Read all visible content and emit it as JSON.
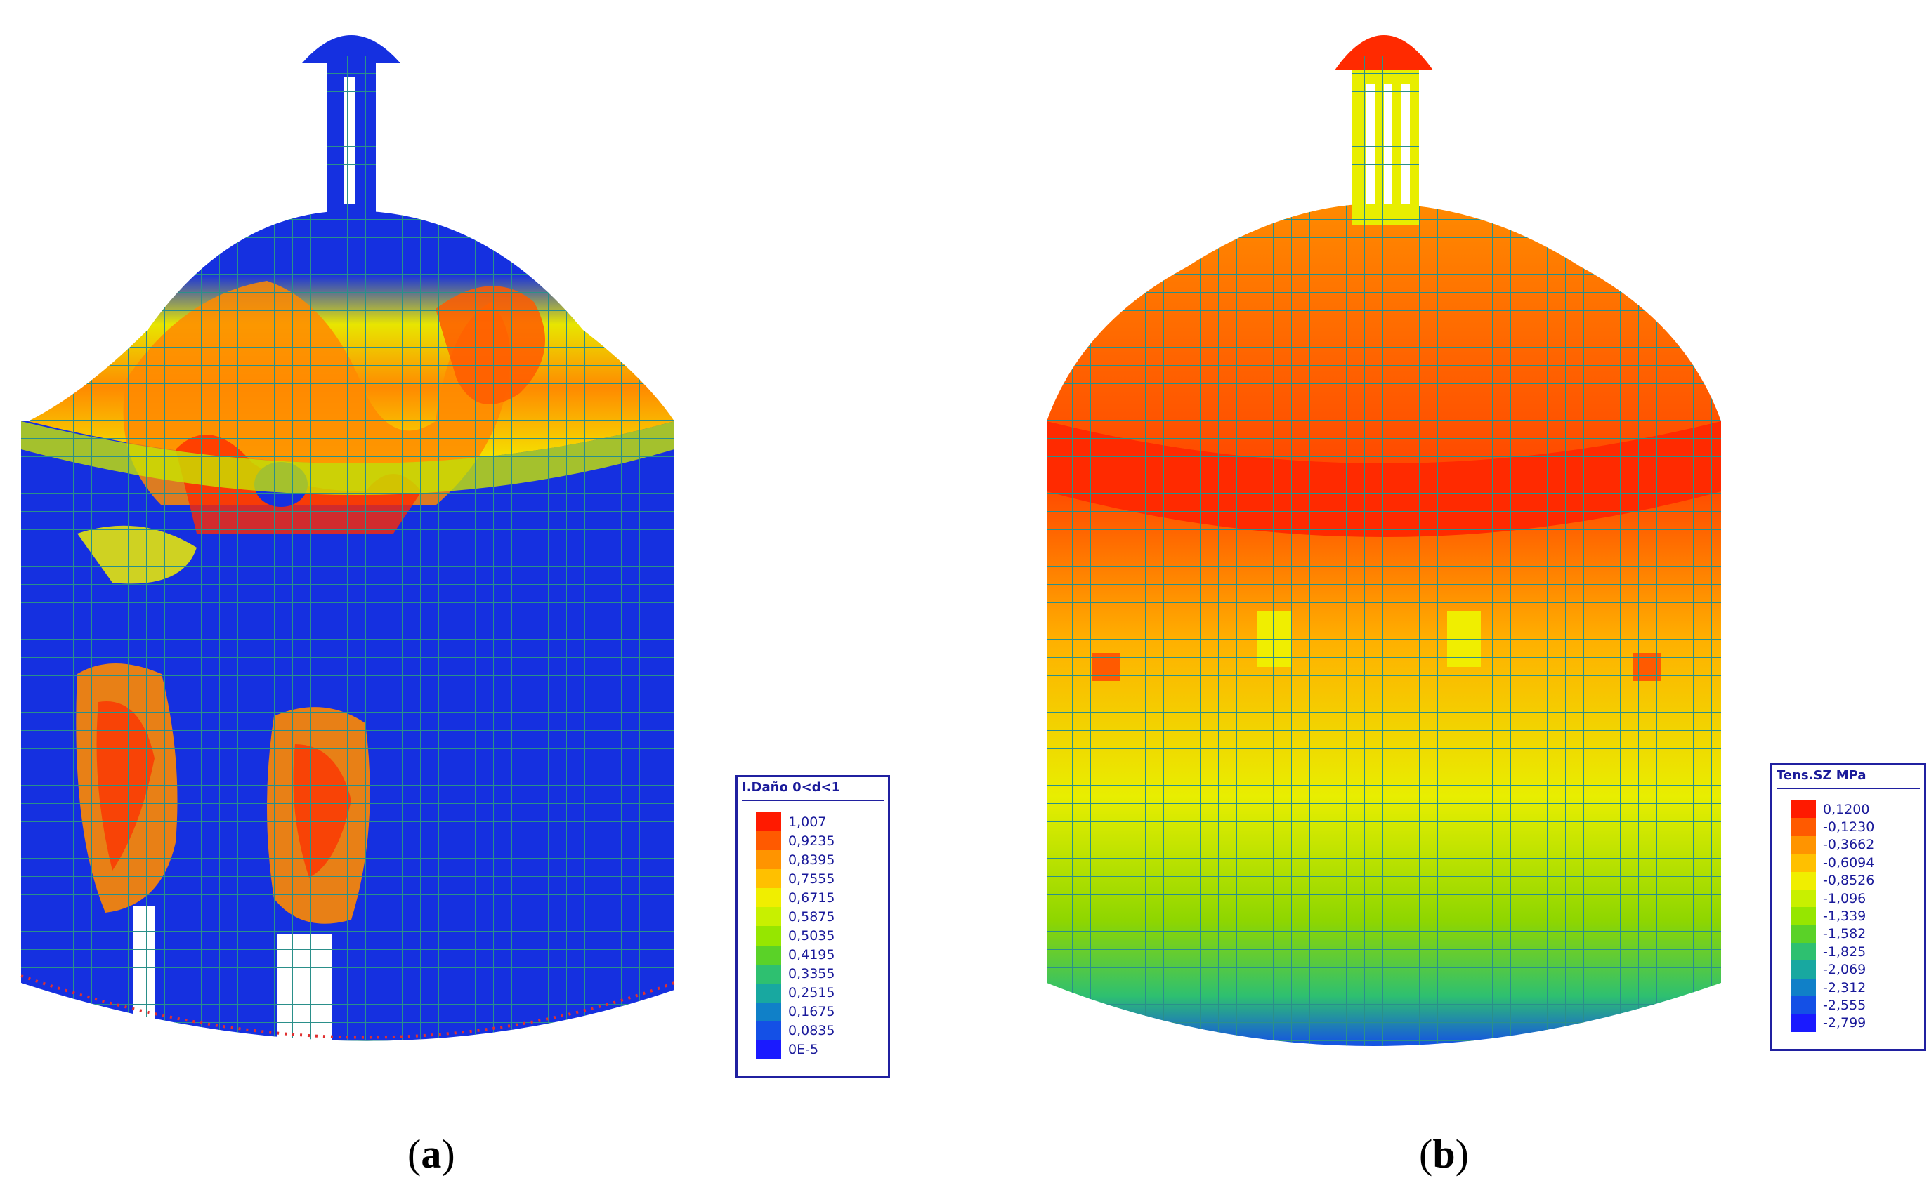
{
  "panels": [
    {
      "id": "a",
      "caption_open": "(",
      "caption_letter": "a",
      "caption_close": ")",
      "legend": {
        "title": "I.Daño 0<d<1",
        "labels": [
          "1,007",
          "0,9235",
          "0,8395",
          "0,7555",
          "0,6715",
          "0,5875",
          "0,5035",
          "0,4195",
          "0,3355",
          "0,2515",
          "0,1675",
          "0,0835",
          "0E-5"
        ],
        "colors": [
          "#ff1a00",
          "#ff5a00",
          "#ff9400",
          "#ffc000",
          "#f0ee00",
          "#c8f000",
          "#96e600",
          "#5ad228",
          "#2ec070",
          "#18a8a0",
          "#1080c8",
          "#1450e6",
          "#1a1aff"
        ]
      },
      "field": "damage-index"
    },
    {
      "id": "b",
      "caption_open": "(",
      "caption_letter": "b",
      "caption_close": ")",
      "legend": {
        "title": "Tens.SZ MPa",
        "labels": [
          "0,1200",
          "-0,1230",
          "-0,3662",
          "-0,6094",
          "-0,8526",
          "-1,096",
          "-1,339",
          "-1,582",
          "-1,825",
          "-2,069",
          "-2,312",
          "-2,555",
          "-2,799"
        ],
        "colors": [
          "#ff1a00",
          "#ff5a00",
          "#ff9400",
          "#ffc000",
          "#f0ee00",
          "#c8f000",
          "#96e600",
          "#5ad228",
          "#2ec070",
          "#18a8a0",
          "#1080c8",
          "#1450e6",
          "#1a1aff"
        ]
      },
      "field": "vertical-stress"
    }
  ],
  "colors": {
    "mesh": "#2a8f8a",
    "blue": "#1530e0",
    "red": "#ff2a00",
    "orange": "#ff8a00",
    "yellow": "#e8ee00",
    "green": "#4cc44a",
    "teal": "#1aa8a0",
    "legend_border": "#2020a0"
  }
}
